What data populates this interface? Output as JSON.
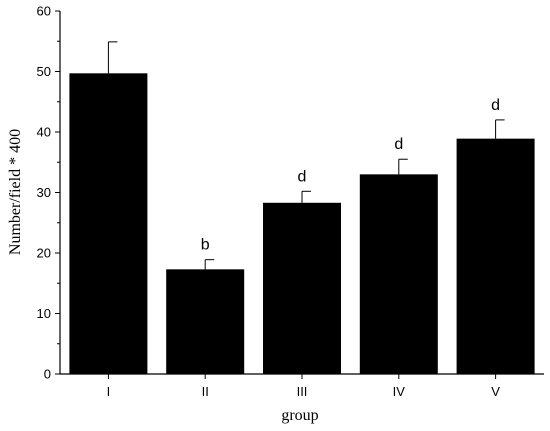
{
  "chart_data": {
    "type": "bar",
    "categories": [
      "I",
      "II",
      "III",
      "IV",
      "V"
    ],
    "values": [
      49.7,
      17.3,
      28.3,
      33.0,
      38.9
    ],
    "errors": [
      5.2,
      1.6,
      1.9,
      2.5,
      3.1
    ],
    "significance": [
      "",
      "b",
      "d",
      "d",
      "d"
    ],
    "title": "",
    "xlabel": "group",
    "ylabel": "Number/field * 400",
    "ylim": [
      0,
      60
    ],
    "yticks": [
      0,
      10,
      20,
      30,
      40,
      50,
      60
    ],
    "grid": false,
    "legend": "none",
    "bar_color": "#000000"
  }
}
